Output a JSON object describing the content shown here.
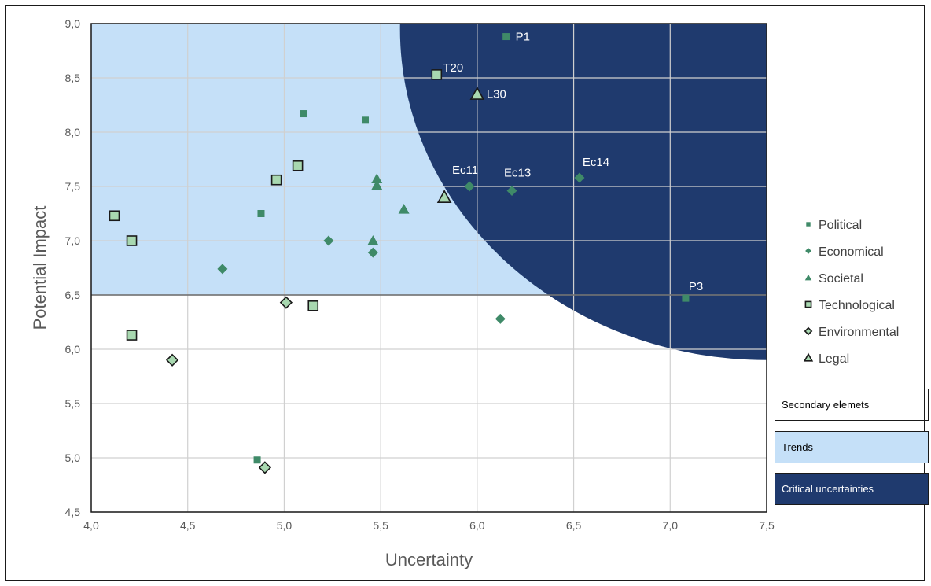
{
  "chart_data": {
    "type": "scatter",
    "xlabel": "Uncertainty",
    "ylabel": "Potential Impact",
    "xlim": [
      4.0,
      7.5
    ],
    "ylim": [
      4.5,
      9.0
    ],
    "x_ticks": [
      "4,0",
      "4,5",
      "5,0",
      "5,5",
      "6,0",
      "6,5",
      "7,0",
      "7,5"
    ],
    "y_ticks": [
      "4,5",
      "5,0",
      "5,5",
      "6,0",
      "6,5",
      "7,0",
      "7,5",
      "8,0",
      "8,5",
      "9,0"
    ],
    "grid": true,
    "legend_position": "right",
    "zones": {
      "trends_threshold_y": 6.5,
      "critical_boundary_center": [
        7.5,
        8.95
      ],
      "critical_boundary_radii": [
        1.9,
        3.05
      ]
    },
    "series": [
      {
        "name": "Political",
        "marker": "square-small",
        "points": [
          [
            6.15,
            8.88,
            "P1"
          ],
          [
            5.1,
            8.17,
            ""
          ],
          [
            5.42,
            8.11,
            ""
          ],
          [
            4.88,
            7.25,
            ""
          ],
          [
            4.86,
            4.98,
            ""
          ],
          [
            7.08,
            6.47,
            "P3"
          ]
        ]
      },
      {
        "name": "Economical",
        "marker": "diamond",
        "points": [
          [
            5.96,
            7.5,
            "Ec11"
          ],
          [
            6.18,
            7.46,
            "Ec13"
          ],
          [
            6.53,
            7.58,
            "Ec14"
          ],
          [
            5.23,
            7.0,
            ""
          ],
          [
            4.68,
            6.74,
            ""
          ],
          [
            5.46,
            6.89,
            ""
          ],
          [
            6.12,
            6.28,
            ""
          ]
        ]
      },
      {
        "name": "Societal",
        "marker": "triangle",
        "points": [
          [
            5.48,
            7.57,
            ""
          ],
          [
            5.48,
            7.51,
            ""
          ],
          [
            5.46,
            7.0,
            ""
          ],
          [
            5.62,
            7.29,
            ""
          ]
        ]
      },
      {
        "name": "Technological",
        "marker": "square",
        "points": [
          [
            5.79,
            8.53,
            "T20"
          ],
          [
            4.12,
            7.23,
            ""
          ],
          [
            4.21,
            7.0,
            ""
          ],
          [
            4.96,
            7.56,
            ""
          ],
          [
            5.07,
            7.69,
            ""
          ],
          [
            5.15,
            6.4,
            ""
          ],
          [
            4.21,
            6.13,
            ""
          ]
        ]
      },
      {
        "name": "Environmental",
        "marker": "diamond-outline",
        "points": [
          [
            5.01,
            6.43,
            ""
          ],
          [
            4.42,
            5.9,
            ""
          ],
          [
            4.9,
            4.91,
            ""
          ]
        ]
      },
      {
        "name": "Legal",
        "marker": "triangle-outline",
        "points": [
          [
            6.0,
            8.35,
            "L30"
          ],
          [
            5.83,
            7.4,
            ""
          ]
        ]
      }
    ],
    "zone_legend": [
      {
        "label": "Secondary elemets",
        "color": "#ffffff"
      },
      {
        "label": "Trends",
        "color": "#c5e0f8"
      },
      {
        "label": "Critical uncertainties",
        "color": "#1f3a6e"
      }
    ]
  },
  "colors": {
    "trends": "#c5e0f8",
    "critical": "#1f3a6e",
    "marker_fill": "#3f8a68",
    "marker_light": "#a8d8b0",
    "marker_stroke": "#1a1a1a"
  }
}
